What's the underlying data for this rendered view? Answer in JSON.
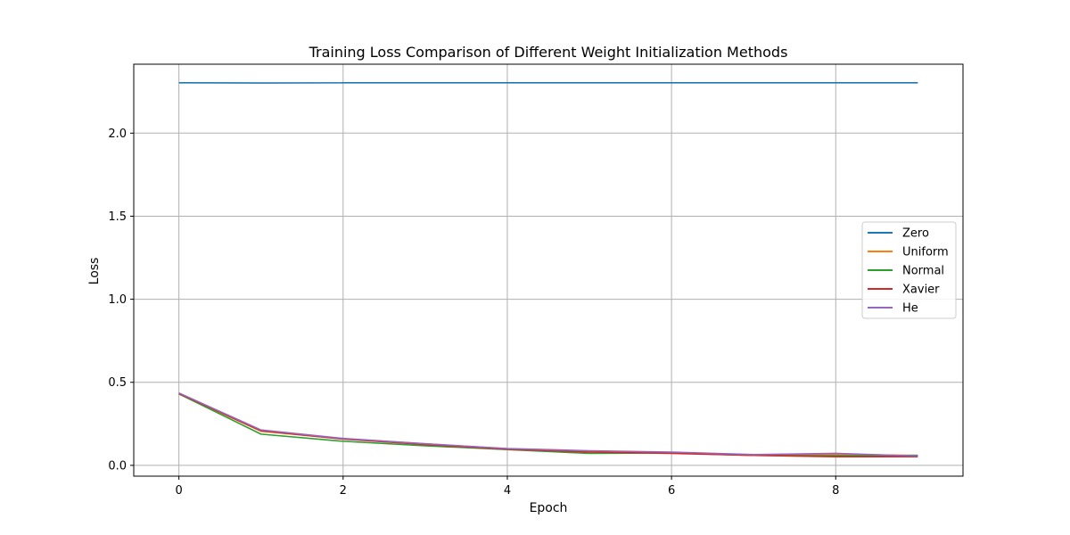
{
  "chart_data": {
    "type": "line",
    "title": "Training Loss Comparison of Different Weight Initialization Methods",
    "xlabel": "Epoch",
    "ylabel": "Loss",
    "xlim": [
      -0.55,
      9.55
    ],
    "ylim": [
      -0.065,
      2.415
    ],
    "xticks": [
      0,
      2,
      4,
      6,
      8
    ],
    "yticks": [
      0.0,
      0.5,
      1.0,
      1.5,
      2.0
    ],
    "xtick_labels": [
      "0",
      "2",
      "4",
      "6",
      "8"
    ],
    "ytick_labels": [
      "0.0",
      "0.5",
      "1.0",
      "1.5",
      "2.0"
    ],
    "grid": true,
    "legend_position": "center-right",
    "x": [
      0,
      1,
      2,
      3,
      4,
      5,
      6,
      7,
      8,
      9
    ],
    "series": [
      {
        "name": "Zero",
        "color": "#1f77b4",
        "values": [
          2.303,
          2.302,
          2.303,
          2.303,
          2.303,
          2.303,
          2.303,
          2.303,
          2.303,
          2.303
        ]
      },
      {
        "name": "Uniform",
        "color": "#ff7f0e",
        "values": [
          0.432,
          0.205,
          0.16,
          0.13,
          0.1,
          0.085,
          0.075,
          0.06,
          0.065,
          0.06
        ]
      },
      {
        "name": "Normal",
        "color": "#2ca02c",
        "values": [
          0.43,
          0.188,
          0.145,
          0.118,
          0.095,
          0.072,
          0.075,
          0.06,
          0.058,
          0.06
        ]
      },
      {
        "name": "Xavier",
        "color": "#d62728",
        "values": [
          0.432,
          0.208,
          0.158,
          0.125,
          0.097,
          0.08,
          0.072,
          0.06,
          0.052,
          0.052
        ]
      },
      {
        "name": "He",
        "color": "#9467bd",
        "values": [
          0.436,
          0.213,
          0.162,
          0.13,
          0.101,
          0.088,
          0.08,
          0.065,
          0.072,
          0.056
        ]
      }
    ]
  }
}
